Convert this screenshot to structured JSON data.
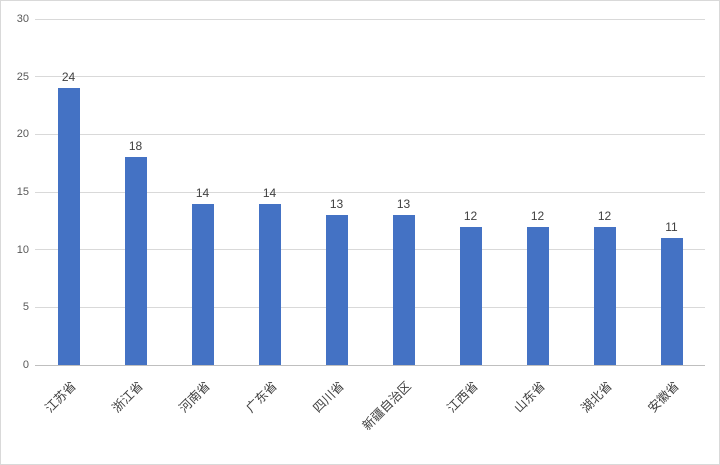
{
  "chart_data": {
    "type": "bar",
    "title": "",
    "xlabel": "",
    "ylabel": "",
    "categories": [
      "江苏省",
      "浙江省",
      "河南省",
      "广东省",
      "四川省",
      "新疆自治区",
      "江西省",
      "山东省",
      "湖北省",
      "安徽省"
    ],
    "values": [
      24,
      18,
      14,
      14,
      13,
      13,
      12,
      12,
      12,
      11
    ],
    "ylim": [
      0,
      30
    ],
    "yticks": [
      0,
      5,
      10,
      15,
      20,
      25,
      30
    ],
    "grid": true,
    "legend": "none",
    "bar_color": "#4472C4",
    "gridline_color": "#D9D9D9",
    "axis_color": "#BFBFBF",
    "tick_label_color": "#595959",
    "data_label_color": "#404040"
  }
}
